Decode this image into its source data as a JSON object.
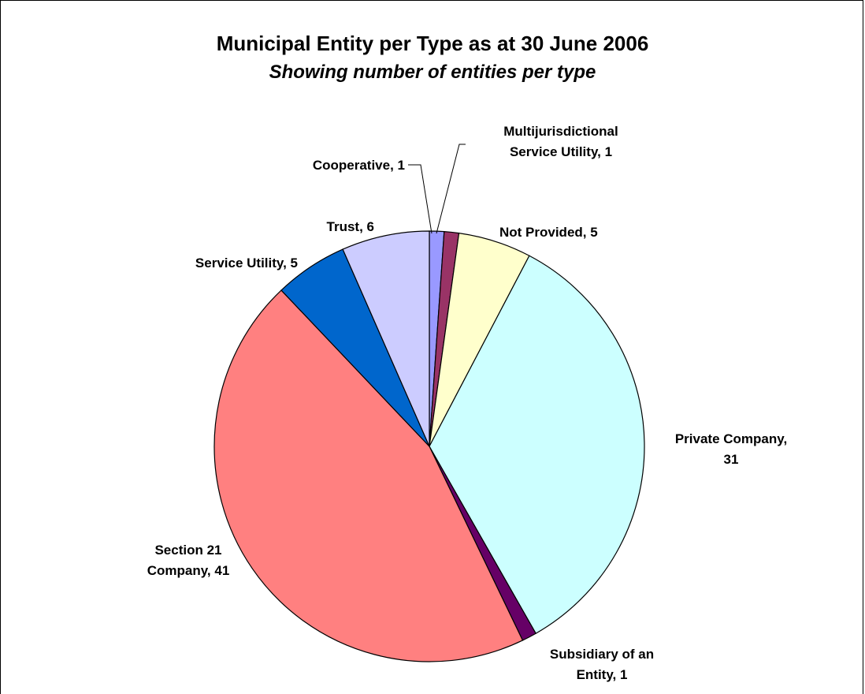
{
  "chart_data": {
    "type": "pie",
    "title": "Municipal Entity per Type as at 30 June 2006",
    "subtitle": "Showing number of entities per type",
    "slices": [
      {
        "name": "Cooperative",
        "value": 1,
        "color": "#9999ff",
        "label_lines": [
          "Cooperative, 1"
        ]
      },
      {
        "name": "Multijurisdictional Service Utility",
        "value": 1,
        "color": "#993366",
        "label_lines": [
          "Multijurisdictional",
          "Service Utility, 1"
        ]
      },
      {
        "name": "Not Provided",
        "value": 5,
        "color": "#ffffcc",
        "label_lines": [
          "Not Provided, 5"
        ]
      },
      {
        "name": "Private Company",
        "value": 31,
        "color": "#ccffff",
        "label_lines": [
          "Private Company,",
          "31"
        ]
      },
      {
        "name": "Subsidiary of an Entity",
        "value": 1,
        "color": "#660066",
        "label_lines": [
          "Subsidiary of an",
          "Entity, 1"
        ]
      },
      {
        "name": "Section 21 Company",
        "value": 41,
        "color": "#ff8080",
        "label_lines": [
          "Section 21",
          "Company, 41"
        ]
      },
      {
        "name": "Service Utility",
        "value": 5,
        "color": "#0066cc",
        "label_lines": [
          "Service Utility, 5"
        ]
      },
      {
        "name": "Trust",
        "value": 6,
        "color": "#ccccff",
        "label_lines": [
          "Trust, 6"
        ]
      }
    ],
    "start_angle": "12 o'clock",
    "direction": "clockwise",
    "legend": "none",
    "data_labels": "category name and value"
  }
}
